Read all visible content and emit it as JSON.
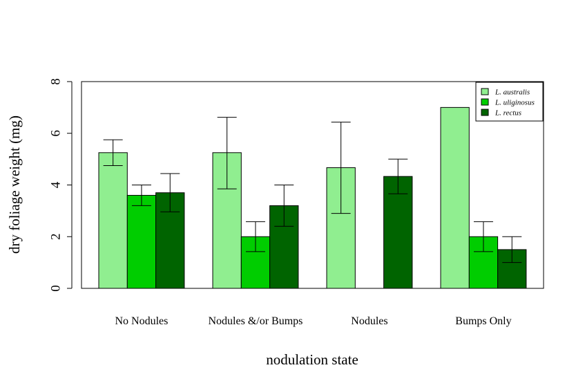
{
  "chart_data": {
    "type": "bar",
    "xlabel": "nodulation state",
    "ylabel": "dry foliage weight (mg)",
    "ylim": [
      0,
      8
    ],
    "yticks": [
      0,
      2,
      4,
      6,
      8
    ],
    "categories": [
      "No Nodules",
      "Nodules &/or Bumps",
      "Nodules",
      "Bumps Only"
    ],
    "series": [
      {
        "name": "L. australis",
        "color": "#90EE90",
        "values": [
          5.25,
          5.25,
          4.67,
          7.0
        ],
        "error_low": [
          4.75,
          3.85,
          2.9,
          null
        ],
        "error_high": [
          5.75,
          6.62,
          6.43,
          null
        ]
      },
      {
        "name": "L. uliginosus",
        "color": "#00CD00",
        "values": [
          3.6,
          2.0,
          null,
          2.0
        ],
        "error_low": [
          3.2,
          1.42,
          null,
          1.42
        ],
        "error_high": [
          4.0,
          2.58,
          null,
          2.58
        ]
      },
      {
        "name": "L. rectus",
        "color": "#006400",
        "values": [
          3.7,
          3.2,
          4.33,
          1.5
        ],
        "error_low": [
          2.96,
          2.4,
          3.66,
          1.0
        ],
        "error_high": [
          4.44,
          4.0,
          5.0,
          2.0
        ]
      }
    ],
    "legend_position": "top-right",
    "grid": false
  }
}
